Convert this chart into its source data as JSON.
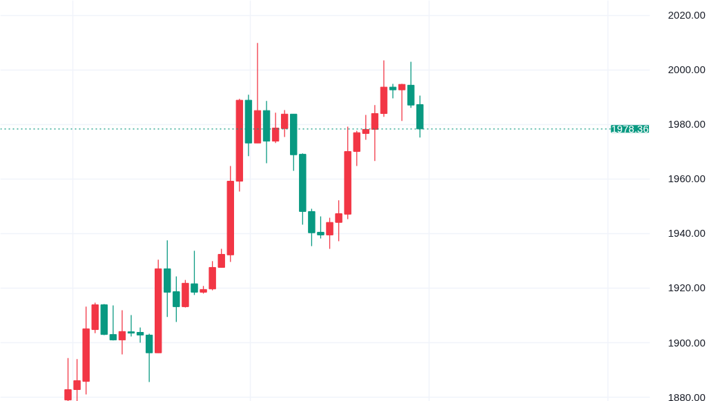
{
  "chart_data": {
    "type": "candlestick",
    "categories": [
      null,
      null,
      null,
      null,
      null,
      null,
      null,
      null,
      null,
      null,
      null,
      null,
      null,
      null,
      null,
      null,
      null,
      null,
      null,
      null,
      null,
      null,
      null,
      null,
      null,
      null,
      null,
      null,
      null,
      null,
      null,
      null,
      null,
      null,
      null,
      null,
      null,
      null,
      null,
      null,
      null,
      null,
      null,
      null,
      null,
      null,
      null,
      null,
      null,
      null,
      null,
      null,
      null,
      null,
      null,
      null,
      null,
      null,
      null,
      null,
      null,
      null,
      null,
      null,
      null,
      null,
      null,
      null,
      null,
      null,
      null,
      null
    ],
    "ohlc": [
      null,
      null,
      null,
      null,
      null,
      null,
      null,
      [
        1879,
        1894.4,
        1878.6,
        1882.8
      ],
      [
        1882.8,
        1894,
        1878.6,
        1886.1
      ],
      [
        1885.8,
        1913.2,
        1881,
        1905.1
      ],
      [
        1904.8,
        1914.7,
        1903.5,
        1913.9
      ],
      [
        1913.9,
        1914.2,
        1902.8,
        1903
      ],
      [
        1903,
        1913.7,
        1900.8,
        1901
      ],
      [
        1901,
        1911.9,
        1895.7,
        1904.1
      ],
      [
        1904,
        1910.1,
        1902.3,
        1903.5
      ],
      [
        1903.8,
        1905.6,
        1900,
        1902.8
      ],
      [
        1902.8,
        1903.3,
        1885.6,
        1896.3
      ],
      [
        1896.3,
        1930.4,
        1896.3,
        1927.1
      ],
      [
        1927.1,
        1937.5,
        1909.4,
        1918.5
      ],
      [
        1918.7,
        1924.3,
        1907.6,
        1913.2
      ],
      [
        1913.2,
        1923,
        1912.9,
        1921.8
      ],
      [
        1921.6,
        1933.7,
        1917.5,
        1918.5
      ],
      [
        1918.5,
        1920.8,
        1918,
        1919.5
      ],
      [
        1919.7,
        1929.9,
        1919.2,
        1927.6
      ],
      [
        1927.6,
        1934.4,
        1927.6,
        1932.4
      ],
      [
        1932.2,
        1964.8,
        1929.6,
        1959.2
      ],
      [
        1959.2,
        1989.4,
        1955.4,
        1988.9
      ],
      [
        1988.9,
        1990.9,
        1968.4,
        1973.2
      ],
      [
        1973.2,
        2009.9,
        1973.2,
        1985.1
      ],
      [
        1985.1,
        1988.6,
        1965.8,
        1973.9
      ],
      [
        1973.9,
        1984.3,
        1973.2,
        1978.7
      ],
      [
        1978.5,
        1985.3,
        1975.4,
        1983.8
      ],
      [
        1983.8,
        1983.8,
        1963,
        1968.9
      ],
      [
        1969.1,
        1969.4,
        1943.3,
        1948.1
      ],
      [
        1948.1,
        1949.1,
        1935.4,
        1940.3
      ],
      [
        1940.5,
        1946.3,
        1938.2,
        1939.5
      ],
      [
        1939.5,
        1945.8,
        1934.4,
        1944.1
      ],
      [
        1944.1,
        1952.2,
        1937.2,
        1947.3
      ],
      [
        1947.1,
        1979.2,
        1945.3,
        1970.1
      ],
      [
        1970.1,
        1977.7,
        1964.8,
        1977
      ],
      [
        1976.7,
        1983.5,
        1974.4,
        1978.2
      ],
      [
        1978.2,
        1987.1,
        1966.6,
        1984
      ],
      [
        1984,
        2003.5,
        1982.8,
        1993.7
      ],
      [
        1993.7,
        1994.9,
        1989.6,
        1992.7
      ],
      [
        1992.7,
        1994.9,
        1981.3,
        1994.7
      ],
      [
        1994.4,
        2003,
        1986.1,
        1987.1
      ],
      [
        1987.3,
        1990.6,
        1975.2,
        1978.36
      ],
      null,
      null,
      null,
      null,
      null,
      null,
      null,
      null,
      null,
      null,
      null,
      null,
      null,
      null,
      null,
      null,
      null,
      null,
      null,
      null,
      null,
      null,
      null,
      null,
      null
    ],
    "colors": [
      null,
      null,
      null,
      null,
      null,
      null,
      null,
      "#f23645",
      "#f23645",
      "#f23645",
      "#f23645",
      "#089981",
      "#089981",
      "#f23645",
      "#089981",
      "#089981",
      "#089981",
      "#f23645",
      "#089981",
      "#089981",
      "#f23645",
      "#089981",
      "#f23645",
      "#f23645",
      "#f23645",
      "#f23645",
      "#f23645",
      "#089981",
      "#f23645",
      "#089981",
      "#f23645",
      "#f23645",
      "#089981",
      "#089981",
      "#089981",
      "#089981",
      "#f23645",
      "#f23645",
      "#f23645",
      "#f23645",
      "#f23645",
      "#f23645",
      "#f23645",
      "#089981",
      "#f23645",
      "#089981",
      "#089981",
      null,
      null,
      null,
      null,
      null,
      null,
      null,
      null,
      null,
      null,
      null,
      null,
      null,
      null,
      null,
      null,
      null,
      null,
      null,
      null,
      null,
      null,
      null,
      null,
      null
    ],
    "ylim": [
      1878.5,
      2025.5
    ],
    "yticks": [
      {
        "value": 1880,
        "label": "1880.00"
      },
      {
        "value": 1900,
        "label": "1900.00"
      },
      {
        "value": 1920,
        "label": "1920.00"
      },
      {
        "value": 1940,
        "label": "1940.00"
      },
      {
        "value": 1960,
        "label": "1960.00"
      },
      {
        "value": 1980,
        "label": "1980.00"
      },
      {
        "value": 2000,
        "label": "2000.00"
      },
      {
        "value": 2020,
        "label": "2020.00"
      }
    ],
    "grid": true,
    "ref_lines": [
      {
        "axis": "y",
        "value": 1978.36,
        "label": "1978.36",
        "color": "#089981",
        "line_style": "dotted"
      }
    ]
  }
}
